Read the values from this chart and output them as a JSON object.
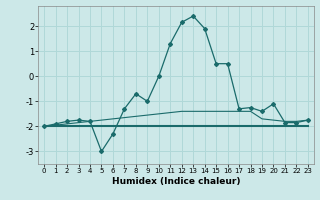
{
  "xlabel": "Humidex (Indice chaleur)",
  "bg_color": "#cce8e8",
  "line_color": "#1a6b6b",
  "grid_color": "#b0d8d8",
  "x_values": [
    0,
    1,
    2,
    3,
    4,
    5,
    6,
    7,
    8,
    9,
    10,
    11,
    12,
    13,
    14,
    15,
    16,
    17,
    18,
    19,
    20,
    21,
    22,
    23
  ],
  "curve_y": [
    -2.0,
    -1.9,
    -1.8,
    -1.75,
    -1.8,
    -3.0,
    -2.3,
    -1.3,
    -0.7,
    -1.0,
    0.0,
    1.3,
    2.15,
    2.4,
    1.9,
    0.5,
    0.5,
    -1.3,
    -1.25,
    -1.4,
    -1.1,
    -1.85,
    -1.85,
    -1.75
  ],
  "flat_y": [
    -2.0,
    -2.0,
    -2.0,
    -2.0,
    -2.0,
    -2.0,
    -2.0,
    -2.0,
    -2.0,
    -2.0,
    -2.0,
    -2.0,
    -2.0,
    -2.0,
    -2.0,
    -2.0,
    -2.0,
    -2.0,
    -2.0,
    -2.0,
    -2.0,
    -2.0,
    -2.0,
    -2.0
  ],
  "slope_y": [
    -2.0,
    -1.95,
    -1.9,
    -1.85,
    -1.8,
    -1.75,
    -1.7,
    -1.65,
    -1.6,
    -1.55,
    -1.5,
    -1.45,
    -1.4,
    -1.4,
    -1.4,
    -1.4,
    -1.4,
    -1.4,
    -1.4,
    -1.7,
    -1.75,
    -1.8,
    -1.8,
    -1.75
  ],
  "xlim": [
    -0.5,
    23.5
  ],
  "ylim": [
    -3.5,
    2.8
  ],
  "yticks": [
    -3,
    -2,
    -1,
    0,
    1,
    2
  ],
  "xticks": [
    0,
    1,
    2,
    3,
    4,
    5,
    6,
    7,
    8,
    9,
    10,
    11,
    12,
    13,
    14,
    15,
    16,
    17,
    18,
    19,
    20,
    21,
    22,
    23
  ],
  "figsize": [
    3.2,
    2.0
  ],
  "dpi": 100
}
